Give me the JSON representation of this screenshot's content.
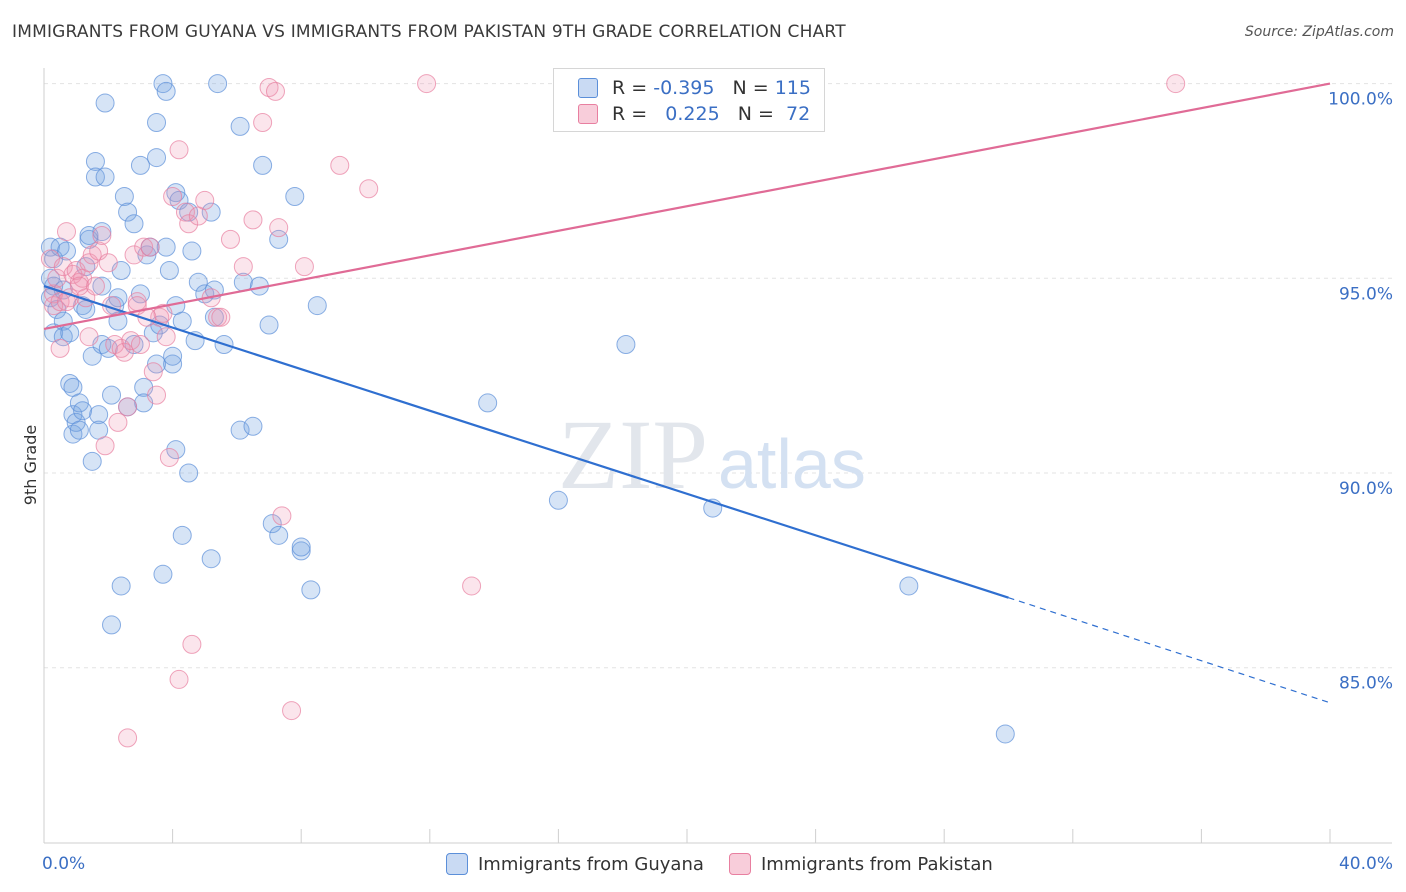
{
  "title": "IMMIGRANTS FROM GUYANA VS IMMIGRANTS FROM PAKISTAN 9TH GRADE CORRELATION CHART",
  "source": "Source: ZipAtlas.com",
  "watermark": {
    "zip": "ZIP",
    "atlas": "atlas"
  },
  "legend": {
    "r_label": "R =",
    "n_label": "N =",
    "rows": [
      {
        "r": "-0.395",
        "n": "115",
        "color": "#5b8fd9"
      },
      {
        "r": "0.225",
        "n": "72",
        "color": "#e87fa0"
      }
    ]
  },
  "bottom_legend": [
    {
      "label": "Immigrants from Guyana",
      "color": "#5b8fd9"
    },
    {
      "label": "Immigrants from Pakistan",
      "color": "#e87fa0"
    }
  ],
  "chart_data": {
    "type": "scatter",
    "ylabel": "9th Grade",
    "xlabel": "",
    "xlim": [
      0,
      40
    ],
    "ylim": [
      80.5,
      100.4
    ],
    "x_tick_labels": [
      "0.0%",
      "40.0%"
    ],
    "y_ticks": [
      {
        "value": 85,
        "label": "85.0%"
      },
      {
        "value": 90,
        "label": "90.0%"
      },
      {
        "value": 95,
        "label": "95.0%"
      },
      {
        "value": 100,
        "label": "100.0%"
      }
    ],
    "grid": "horizontal dashed",
    "series": [
      {
        "name": "Immigrants from Guyana",
        "color": "#5b8fd9",
        "trend": {
          "x0": 0,
          "y0": 94.8,
          "x1": 30,
          "y1": 86.8,
          "dashed_to_x": 40,
          "dashed_to_y": 84.1
        },
        "points": [
          [
            0.2,
            95.8
          ],
          [
            0.3,
            95.5
          ],
          [
            0.2,
            95.0
          ],
          [
            0.3,
            94.8
          ],
          [
            0.2,
            94.5
          ],
          [
            0.4,
            94.2
          ],
          [
            0.3,
            93.6
          ],
          [
            0.6,
            94.7
          ],
          [
            0.5,
            95.8
          ],
          [
            0.7,
            95.7
          ],
          [
            0.6,
            93.9
          ],
          [
            0.6,
            93.5
          ],
          [
            0.8,
            93.6
          ],
          [
            0.8,
            92.3
          ],
          [
            0.9,
            92.2
          ],
          [
            0.9,
            91.5
          ],
          [
            0.9,
            91.0
          ],
          [
            1.0,
            91.3
          ],
          [
            1.1,
            91.1
          ],
          [
            1.1,
            91.8
          ],
          [
            1.2,
            91.6
          ],
          [
            1.2,
            94.3
          ],
          [
            1.3,
            94.2
          ],
          [
            1.3,
            95.3
          ],
          [
            1.4,
            96.0
          ],
          [
            1.4,
            96.1
          ],
          [
            1.5,
            93.0
          ],
          [
            1.5,
            90.3
          ],
          [
            1.6,
            98.0
          ],
          [
            1.6,
            97.6
          ],
          [
            1.7,
            91.5
          ],
          [
            1.7,
            91.1
          ],
          [
            1.8,
            96.2
          ],
          [
            1.8,
            94.8
          ],
          [
            1.8,
            93.3
          ],
          [
            1.9,
            97.6
          ],
          [
            1.9,
            99.5
          ],
          [
            2.0,
            93.2
          ],
          [
            2.1,
            92.0
          ],
          [
            2.1,
            86.1
          ],
          [
            2.2,
            94.3
          ],
          [
            2.3,
            94.5
          ],
          [
            2.3,
            93.9
          ],
          [
            2.4,
            95.2
          ],
          [
            2.4,
            87.1
          ],
          [
            2.5,
            97.1
          ],
          [
            2.6,
            96.7
          ],
          [
            2.6,
            91.7
          ],
          [
            2.8,
            96.4
          ],
          [
            2.8,
            93.3
          ],
          [
            3.0,
            97.9
          ],
          [
            3.0,
            94.6
          ],
          [
            3.1,
            92.2
          ],
          [
            3.1,
            91.8
          ],
          [
            3.2,
            95.6
          ],
          [
            3.3,
            95.8
          ],
          [
            3.4,
            93.6
          ],
          [
            3.5,
            99.0
          ],
          [
            3.5,
            98.1
          ],
          [
            3.5,
            92.8
          ],
          [
            3.6,
            93.8
          ],
          [
            3.7,
            87.4
          ],
          [
            3.7,
            100.0
          ],
          [
            3.8,
            99.8
          ],
          [
            3.8,
            95.8
          ],
          [
            3.9,
            95.2
          ],
          [
            4.0,
            92.8
          ],
          [
            4.0,
            93.0
          ],
          [
            4.1,
            94.3
          ],
          [
            4.1,
            90.6
          ],
          [
            4.1,
            97.2
          ],
          [
            4.2,
            97.0
          ],
          [
            4.3,
            88.4
          ],
          [
            4.3,
            93.9
          ],
          [
            4.5,
            96.7
          ],
          [
            4.5,
            90.0
          ],
          [
            4.6,
            95.7
          ],
          [
            4.7,
            93.4
          ],
          [
            4.8,
            94.9
          ],
          [
            5.0,
            94.6
          ],
          [
            5.2,
            87.8
          ],
          [
            5.2,
            96.7
          ],
          [
            5.3,
            94.7
          ],
          [
            5.3,
            94.0
          ],
          [
            5.4,
            100.0
          ],
          [
            5.6,
            93.3
          ],
          [
            6.1,
            98.9
          ],
          [
            6.1,
            91.1
          ],
          [
            6.2,
            94.9
          ],
          [
            6.5,
            91.2
          ],
          [
            6.7,
            94.8
          ],
          [
            6.8,
            97.9
          ],
          [
            7.0,
            93.8
          ],
          [
            7.1,
            88.7
          ],
          [
            7.3,
            88.4
          ],
          [
            7.3,
            96.0
          ],
          [
            7.8,
            97.1
          ],
          [
            8.0,
            88.0
          ],
          [
            8.0,
            88.1
          ],
          [
            8.3,
            87.0
          ],
          [
            8.5,
            94.3
          ],
          [
            13.8,
            91.8
          ],
          [
            16.0,
            89.3
          ],
          [
            18.1,
            93.3
          ],
          [
            20.8,
            89.1
          ],
          [
            26.9,
            87.1
          ],
          [
            29.9,
            83.3
          ]
        ]
      },
      {
        "name": "Immigrants from Pakistan",
        "color": "#e87fa0",
        "trend": {
          "x0": 0,
          "y0": 93.7,
          "x1": 40,
          "y1": 100.0
        },
        "points": [
          [
            0.2,
            95.5
          ],
          [
            0.3,
            94.6
          ],
          [
            0.3,
            94.3
          ],
          [
            0.4,
            95.0
          ],
          [
            0.5,
            93.2
          ],
          [
            0.5,
            94.4
          ],
          [
            0.6,
            95.3
          ],
          [
            0.7,
            96.2
          ],
          [
            0.8,
            94.5
          ],
          [
            0.9,
            95.1
          ],
          [
            1.0,
            95.2
          ],
          [
            1.1,
            94.9
          ],
          [
            1.2,
            95.0
          ],
          [
            1.3,
            94.5
          ],
          [
            1.4,
            95.4
          ],
          [
            1.5,
            95.6
          ],
          [
            1.6,
            94.8
          ],
          [
            1.7,
            95.7
          ],
          [
            1.8,
            96.1
          ],
          [
            1.9,
            90.7
          ],
          [
            2.0,
            95.4
          ],
          [
            2.1,
            94.3
          ],
          [
            2.2,
            93.3
          ],
          [
            2.3,
            91.3
          ],
          [
            2.4,
            93.2
          ],
          [
            2.5,
            93.1
          ],
          [
            2.6,
            91.7
          ],
          [
            2.7,
            93.4
          ],
          [
            2.8,
            95.6
          ],
          [
            2.9,
            94.4
          ],
          [
            3.0,
            93.3
          ],
          [
            3.1,
            95.8
          ],
          [
            3.3,
            95.8
          ],
          [
            3.4,
            92.6
          ],
          [
            3.5,
            92.0
          ],
          [
            3.6,
            94.0
          ],
          [
            3.7,
            94.1
          ],
          [
            3.8,
            93.5
          ],
          [
            3.9,
            90.4
          ],
          [
            4.0,
            97.1
          ],
          [
            4.2,
            84.7
          ],
          [
            4.2,
            98.3
          ],
          [
            4.4,
            96.7
          ],
          [
            4.5,
            96.4
          ],
          [
            4.6,
            85.6
          ],
          [
            4.8,
            96.6
          ],
          [
            5.0,
            97.0
          ],
          [
            5.2,
            94.5
          ],
          [
            5.4,
            94.0
          ],
          [
            5.5,
            94.0
          ],
          [
            5.8,
            96.0
          ],
          [
            6.2,
            95.3
          ],
          [
            6.5,
            96.5
          ],
          [
            6.8,
            99.0
          ],
          [
            7.0,
            99.9
          ],
          [
            7.2,
            99.8
          ],
          [
            7.3,
            96.3
          ],
          [
            7.4,
            88.9
          ],
          [
            7.7,
            83.9
          ],
          [
            8.1,
            95.3
          ],
          [
            9.2,
            97.9
          ],
          [
            10.1,
            97.3
          ],
          [
            11.9,
            100.0
          ],
          [
            13.3,
            87.1
          ],
          [
            16.8,
            100.0
          ],
          [
            35.2,
            100.0
          ],
          [
            2.6,
            83.2
          ],
          [
            1.1,
            94.8
          ],
          [
            0.7,
            94.4
          ],
          [
            3.2,
            94.0
          ],
          [
            2.9,
            94.3
          ],
          [
            1.4,
            93.5
          ]
        ]
      }
    ]
  }
}
